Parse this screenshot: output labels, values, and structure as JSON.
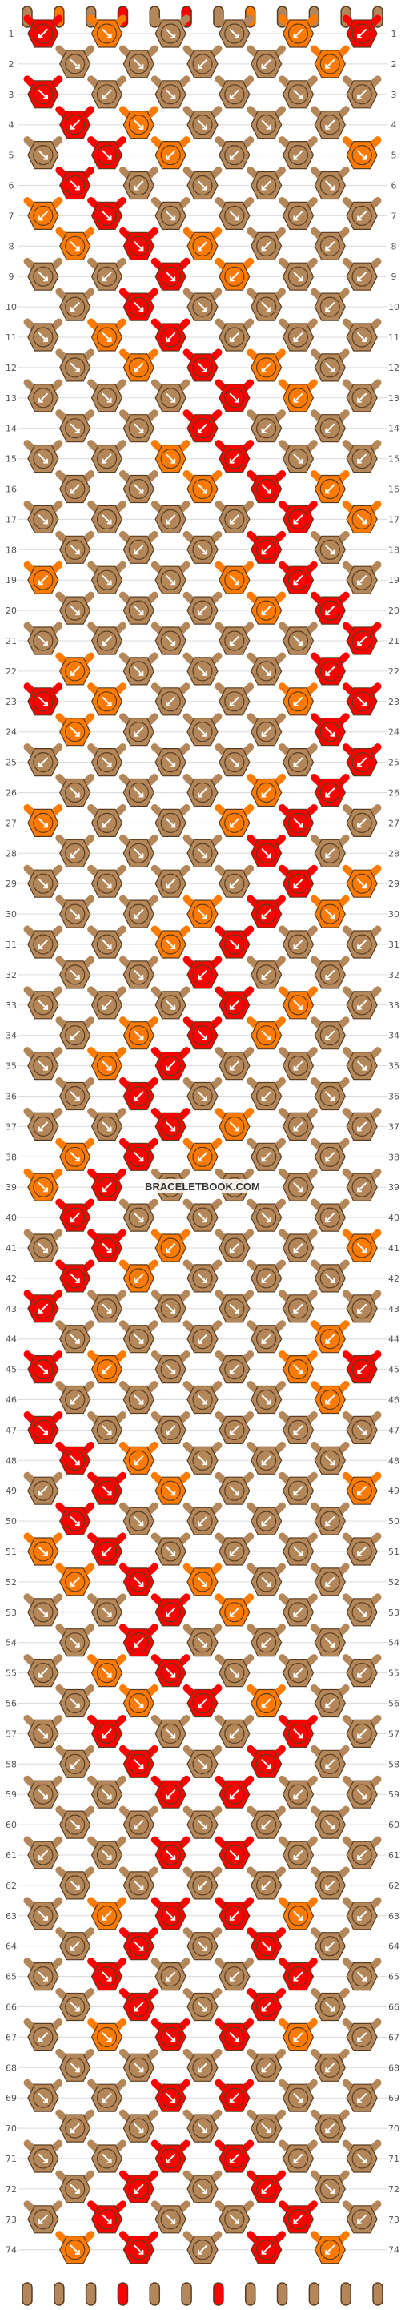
{
  "watermark": "BRACELETBOOK.COM",
  "strands": 12,
  "rows": 74,
  "colors": {
    "A": "#b4875a",
    "B": "#ff7a00",
    "C": "#ff0000",
    "outline": "#5a3c20",
    "arrow": "#ffffff",
    "line": "#d9d9d9"
  },
  "top_strand_colors": [
    "A",
    "B",
    "A",
    "C",
    "A",
    "C",
    "A",
    "B",
    "A",
    "A",
    "A",
    "A"
  ],
  "chart_data": {
    "type": "diagram",
    "title": "",
    "pattern": "chevron friendship-bracelet knot pattern",
    "row_labels_left": "1-74",
    "row_labels_right": "1-74"
  }
}
